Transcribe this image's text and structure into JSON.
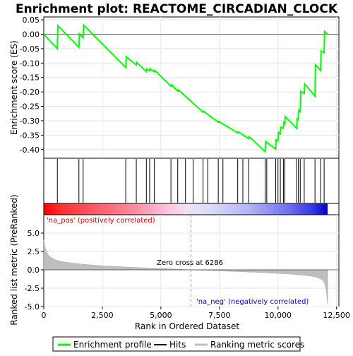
{
  "chart_data": [
    {
      "type": "line",
      "title": "Enrichment plot: REACTOME_CIRCADIAN_CLOCK",
      "ylabel": "Enrichment score (ES)",
      "ylim": [
        -0.43,
        0.06
      ],
      "yticks": [
        "0.05",
        "0.00",
        "-0.05",
        "-0.10",
        "-0.15",
        "-0.20",
        "-0.25",
        "-0.30",
        "-0.35",
        "-0.40"
      ],
      "grid": true,
      "series": [
        {
          "name": "Enrichment profile",
          "color": "#00ff00",
          "x": [
            0,
            580,
            600,
            1500,
            1520,
            1680,
            1700,
            3500,
            3520,
            3950,
            3970,
            4380,
            4400,
            4520,
            4540,
            4720,
            4740,
            5430,
            5450,
            5720,
            5740,
            6800,
            6820,
            7450,
            7470,
            8280,
            8300,
            8750,
            8770,
            9450,
            9470,
            9900,
            9920,
            10000,
            10020,
            10100,
            10120,
            10230,
            10250,
            10290,
            10310,
            10800,
            10820,
            10870,
            10890,
            10950,
            10970,
            11120,
            11140,
            11580,
            11600,
            11820,
            11840,
            11970,
            11990,
            12120
          ],
          "values": [
            0.0,
            -0.05,
            0.03,
            -0.045,
            0.002,
            -0.012,
            0.032,
            -0.115,
            -0.078,
            -0.106,
            -0.097,
            -0.13,
            -0.12,
            -0.127,
            -0.12,
            -0.13,
            -0.125,
            -0.18,
            -0.175,
            -0.197,
            -0.192,
            -0.27,
            -0.267,
            -0.305,
            -0.302,
            -0.342,
            -0.338,
            -0.362,
            -0.355,
            -0.407,
            -0.372,
            -0.398,
            -0.366,
            -0.37,
            -0.34,
            -0.345,
            -0.322,
            -0.326,
            -0.306,
            -0.31,
            -0.286,
            -0.326,
            -0.293,
            -0.297,
            -0.263,
            -0.268,
            -0.198,
            -0.205,
            -0.172,
            -0.215,
            -0.106,
            -0.125,
            -0.058,
            -0.064,
            0.01,
            0.0
          ]
        }
      ],
      "hits": [
        580,
        1500,
        1680,
        3500,
        3950,
        4380,
        4520,
        4720,
        5430,
        5720,
        6050,
        6380,
        6800,
        7000,
        7450,
        7650,
        8280,
        8500,
        8750,
        9450,
        9520,
        9900,
        10000,
        10100,
        10230,
        10290,
        10800,
        10870,
        10950,
        11120,
        11580,
        11820,
        11970
      ]
    },
    {
      "type": "area",
      "xlabel": "Rank in Ordered Dataset",
      "ylabel": "Ranked list metric (PreRanked)",
      "xlim": [
        0,
        12600
      ],
      "ylim": [
        -5.0,
        7.5
      ],
      "xticks": [
        "0",
        "2,500",
        "5,000",
        "7,500",
        "10,000",
        "12,500"
      ],
      "yticks": [
        "5.0",
        "2.5",
        "0.0",
        "-2.5",
        "-5.0"
      ],
      "grid": true,
      "series": [
        {
          "name": "Ranking metric scores",
          "color": "#bebebe",
          "x": [
            0,
            50,
            100,
            200,
            300,
            500,
            800,
            1200,
            1700,
            2500,
            3500,
            4500,
            5500,
            6286,
            7000,
            8000,
            9000,
            9800,
            10500,
            11000,
            11400,
            11700,
            11900,
            12000,
            12060,
            12120
          ],
          "values": [
            4.1,
            3.2,
            2.6,
            2.0,
            1.7,
            1.35,
            1.1,
            0.92,
            0.75,
            0.55,
            0.38,
            0.24,
            0.12,
            0.0,
            -0.08,
            -0.2,
            -0.33,
            -0.45,
            -0.58,
            -0.7,
            -0.85,
            -1.05,
            -1.4,
            -1.9,
            -2.8,
            -4.7
          ]
        }
      ],
      "annotations": [
        "Zero cross at 6286",
        "'na_pos' (positively correlated)",
        "'na_neg' (negatively correlated)"
      ],
      "zero_cross": 6286
    }
  ],
  "legend": {
    "items": [
      "Enrichment profile",
      "Hits",
      "Ranking metric scores"
    ],
    "colors": [
      "#00ff00",
      "#000000",
      "#bebebe"
    ]
  }
}
